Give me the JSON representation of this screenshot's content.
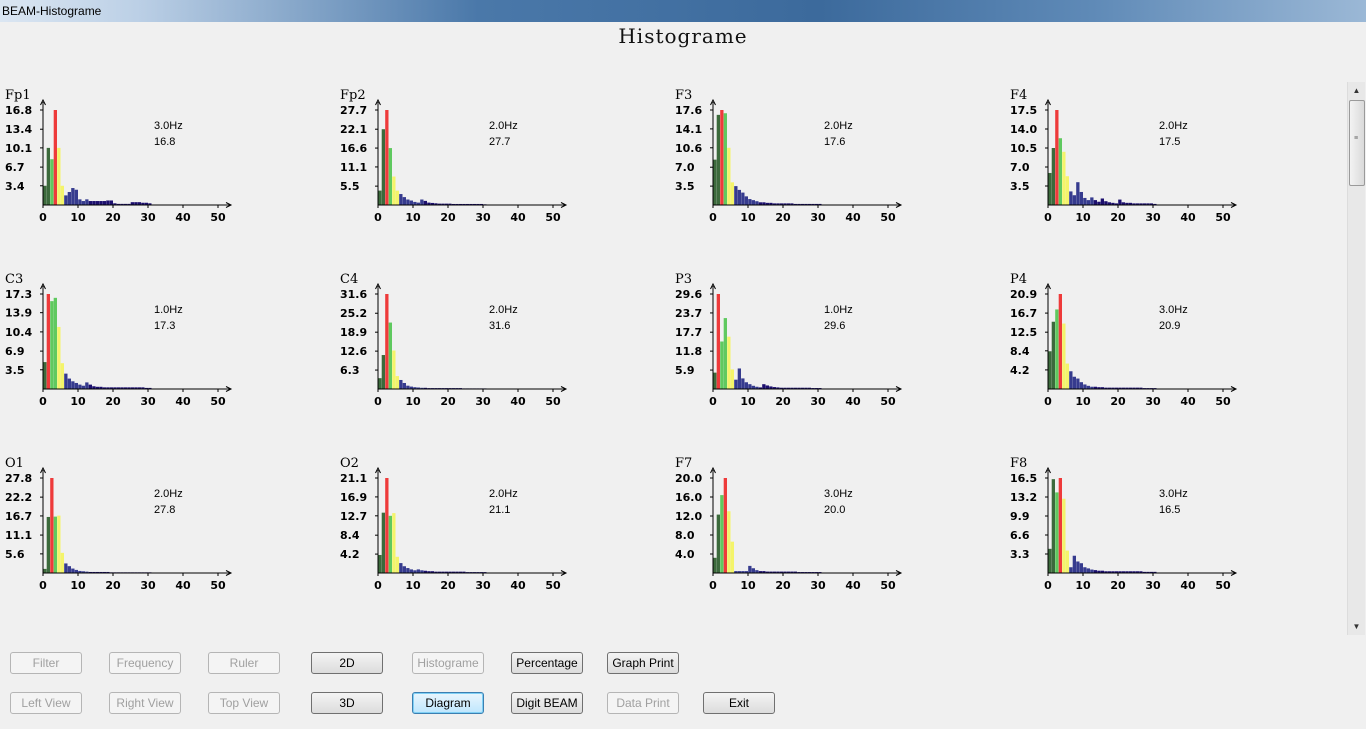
{
  "window": {
    "title": "BEAM-Histograme"
  },
  "page": {
    "heading": "Histograme"
  },
  "colors": {
    "background": "#f0f0f0",
    "delta": "#3c6a3c",
    "theta": "#5fc95f",
    "alpha": "#f4f46a",
    "peak": "#ee3a3a",
    "beta": "#363b8e",
    "gamma": "#1c0f6e"
  },
  "x_ticks": [
    "0",
    "10",
    "20",
    "30",
    "40",
    "50"
  ],
  "channels": [
    {
      "name": "Fp1",
      "peak_freq": "3.0Hz",
      "peak_val": "16.8",
      "y_ticks": [
        "16.8",
        "13.4",
        "10.1",
        "6.7",
        "3.4"
      ],
      "max": 16.8,
      "values": [
        3.4,
        10.1,
        8.1,
        16.8,
        10.1,
        3.4,
        1.7,
        2.3,
        3.0,
        2.7,
        1.0,
        0.7,
        1.0,
        0.7,
        0.7,
        0.7,
        0.7,
        0.7,
        0.8,
        0.8,
        0.3,
        0.2,
        0.2,
        0.2,
        0.2,
        0.5,
        0.5,
        0.5,
        0.4,
        0.4,
        0.3
      ]
    },
    {
      "name": "Fp2",
      "peak_freq": "2.0Hz",
      "peak_val": "27.7",
      "y_ticks": [
        "27.7",
        "22.1",
        "16.6",
        "11.1",
        "5.5"
      ],
      "max": 27.7,
      "values": [
        4.2,
        22.1,
        27.7,
        16.6,
        8.3,
        4.2,
        3.2,
        2.3,
        1.6,
        1.3,
        0.9,
        0.7,
        1.6,
        1.2,
        0.7,
        0.6,
        0.5,
        0.4,
        0.4,
        0.4,
        0.4,
        0.3,
        0.3,
        0.3,
        0.3,
        0.3,
        0.3,
        0.3,
        0.3,
        0.3,
        0.2
      ]
    },
    {
      "name": "F3",
      "peak_freq": "2.0Hz",
      "peak_val": "17.6",
      "y_ticks": [
        "17.6",
        "14.1",
        "10.6",
        "7.0",
        "3.5"
      ],
      "max": 17.6,
      "values": [
        8.4,
        16.7,
        17.6,
        17.0,
        10.6,
        4.2,
        3.5,
        2.8,
        2.3,
        1.6,
        1.1,
        0.9,
        0.7,
        0.5,
        0.5,
        0.4,
        0.4,
        0.3,
        0.3,
        0.3,
        0.3,
        0.3,
        0.3,
        0.2,
        0.2,
        0.2,
        0.2,
        0.2,
        0.2,
        0.2,
        0.2
      ]
    },
    {
      "name": "F4",
      "peak_freq": "2.0Hz",
      "peak_val": "17.5",
      "y_ticks": [
        "17.5",
        "14.0",
        "10.5",
        "7.0",
        "3.5"
      ],
      "max": 17.5,
      "values": [
        5.9,
        10.5,
        17.5,
        12.3,
        9.8,
        5.3,
        2.5,
        1.8,
        4.2,
        2.4,
        1.3,
        0.9,
        1.4,
        0.9,
        0.6,
        1.2,
        0.7,
        0.5,
        0.4,
        0.3,
        1.0,
        0.5,
        0.4,
        0.4,
        0.3,
        0.3,
        0.3,
        0.3,
        0.3,
        0.3,
        0.2
      ]
    },
    {
      "name": "C3",
      "peak_freq": "1.0Hz",
      "peak_val": "17.3",
      "y_ticks": [
        "17.3",
        "13.9",
        "10.4",
        "6.9",
        "3.5"
      ],
      "max": 17.3,
      "values": [
        4.9,
        17.3,
        16.0,
        16.6,
        11.3,
        4.7,
        2.8,
        1.9,
        1.4,
        1.1,
        0.8,
        0.6,
        1.2,
        0.8,
        0.5,
        0.4,
        0.4,
        0.3,
        0.3,
        0.3,
        0.3,
        0.3,
        0.3,
        0.3,
        0.3,
        0.3,
        0.3,
        0.3,
        0.3,
        0.2,
        0.2
      ]
    },
    {
      "name": "C4",
      "peak_freq": "2.0Hz",
      "peak_val": "31.6",
      "y_ticks": [
        "31.6",
        "25.2",
        "18.9",
        "12.6",
        "6.3"
      ],
      "max": 31.6,
      "values": [
        3.6,
        11.3,
        31.6,
        22.1,
        12.8,
        4.3,
        3.0,
        2.0,
        1.1,
        0.8,
        0.6,
        0.5,
        0.4,
        0.4,
        0.3,
        0.3,
        0.3,
        0.3,
        0.3,
        0.3,
        0.3,
        0.3,
        0.3,
        0.3,
        0.2,
        0.2,
        0.2,
        0.2,
        0.2,
        0.2,
        0.2
      ]
    },
    {
      "name": "P3",
      "peak_freq": "1.0Hz",
      "peak_val": "29.6",
      "y_ticks": [
        "29.6",
        "23.7",
        "17.7",
        "11.8",
        "5.9"
      ],
      "max": 29.6,
      "values": [
        5.1,
        29.6,
        14.8,
        22.1,
        16.3,
        6.1,
        2.9,
        6.4,
        3.3,
        2.1,
        1.5,
        1.0,
        0.7,
        0.5,
        1.5,
        1.1,
        0.8,
        0.6,
        0.5,
        0.4,
        0.4,
        0.4,
        0.4,
        0.4,
        0.4,
        0.4,
        0.4,
        0.4,
        0.3,
        0.3,
        0.3
      ]
    },
    {
      "name": "P4",
      "peak_freq": "3.0Hz",
      "peak_val": "20.9",
      "y_ticks": [
        "20.9",
        "16.7",
        "12.5",
        "8.4",
        "4.2"
      ],
      "max": 20.9,
      "values": [
        8.3,
        14.8,
        17.5,
        20.9,
        14.4,
        5.6,
        3.9,
        2.7,
        2.3,
        1.5,
        1.0,
        0.7,
        0.5,
        0.5,
        0.4,
        0.4,
        0.3,
        0.3,
        0.3,
        0.3,
        0.3,
        0.3,
        0.3,
        0.3,
        0.3,
        0.3,
        0.3,
        0.2,
        0.2,
        0.2,
        0.2
      ]
    },
    {
      "name": "O1",
      "peak_freq": "2.0Hz",
      "peak_val": "27.8",
      "y_ticks": [
        "27.8",
        "22.2",
        "16.7",
        "11.1",
        "5.6"
      ],
      "max": 27.8,
      "values": [
        1.2,
        16.4,
        27.8,
        16.5,
        16.8,
        5.9,
        2.8,
        2.0,
        1.3,
        0.9,
        0.6,
        0.5,
        0.4,
        0.3,
        0.3,
        0.3,
        0.3,
        0.3,
        0.3,
        0.2,
        0.2,
        0.2,
        0.2,
        0.2,
        0.2,
        0.2,
        0.2,
        0.2,
        0.2,
        0.2,
        0.2
      ]
    },
    {
      "name": "O2",
      "peak_freq": "2.0Hz",
      "peak_val": "21.1",
      "y_ticks": [
        "21.1",
        "16.9",
        "12.7",
        "8.4",
        "4.2"
      ],
      "max": 21.1,
      "values": [
        4.0,
        13.4,
        21.1,
        12.7,
        13.3,
        3.6,
        2.2,
        1.5,
        1.1,
        0.8,
        0.6,
        0.8,
        0.6,
        0.5,
        0.4,
        0.4,
        0.3,
        0.3,
        0.3,
        0.3,
        0.3,
        0.3,
        0.3,
        0.3,
        0.3,
        0.2,
        0.2,
        0.2,
        0.2,
        0.2,
        0.2
      ]
    },
    {
      "name": "F7",
      "peak_freq": "3.0Hz",
      "peak_val": "20.0",
      "y_ticks": [
        "20.0",
        "16.0",
        "12.0",
        "8.0",
        "4.0"
      ],
      "max": 20.0,
      "values": [
        3.2,
        12.3,
        16.4,
        20.0,
        13.0,
        6.6,
        0.4,
        0.4,
        0.4,
        0.4,
        1.5,
        1.0,
        0.6,
        0.4,
        0.4,
        0.3,
        0.3,
        0.3,
        0.3,
        0.3,
        0.3,
        0.3,
        0.3,
        0.3,
        0.2,
        0.2,
        0.2,
        0.2,
        0.2,
        0.2,
        0.2
      ]
    },
    {
      "name": "F8",
      "peak_freq": "3.0Hz",
      "peak_val": "16.5",
      "y_ticks": [
        "16.5",
        "13.2",
        "9.9",
        "6.6",
        "3.3"
      ],
      "max": 16.5,
      "values": [
        4.2,
        16.3,
        14.0,
        16.5,
        12.9,
        3.9,
        1.0,
        3.0,
        2.0,
        1.7,
        1.0,
        0.8,
        0.6,
        0.5,
        0.4,
        0.4,
        0.3,
        0.3,
        0.3,
        0.3,
        0.3,
        0.3,
        0.3,
        0.3,
        0.3,
        0.3,
        0.3,
        0.2,
        0.2,
        0.2,
        0.2
      ]
    }
  ],
  "buttons": {
    "filter": "Filter",
    "frequency": "Frequency",
    "ruler": "Ruler",
    "two_d": "2D",
    "histograme": "Histograme",
    "percentage": "Percentage",
    "graph_print": "Graph Print",
    "left_view": "Left View",
    "right_view": "Right View",
    "top_view": "Top View",
    "three_d": "3D",
    "diagram": "Diagram",
    "digit_beam": "Digit BEAM",
    "data_print": "Data Print",
    "exit": "Exit"
  }
}
